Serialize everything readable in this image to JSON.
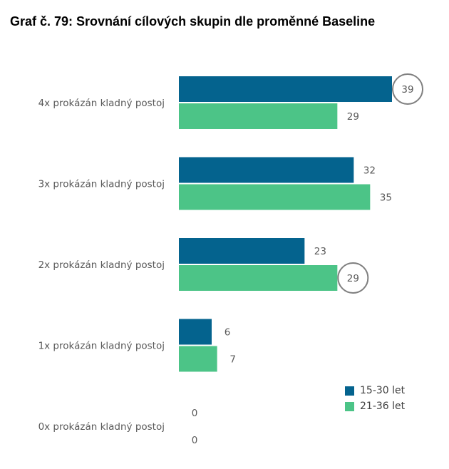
{
  "title": "Graf č. 79: Srovnání cílových skupin dle proměnné Baseline",
  "colors": {
    "series1": "#04638e",
    "series2": "#4cc487",
    "text": "#595959",
    "highlight": "#7f7f7f"
  },
  "chart_data": {
    "type": "bar",
    "orientation": "horizontal",
    "categories": [
      "4x prokázán kladný postoj",
      "3x prokázán kladný postoj",
      "2x prokázán kladný postoj",
      "1x prokázán kladný postoj",
      "0x prokázán kladný postoj"
    ],
    "series": [
      {
        "name": "15-30 let",
        "values": [
          39,
          32,
          23,
          6,
          0
        ]
      },
      {
        "name": "21-36 let",
        "values": [
          29,
          35,
          29,
          7,
          0
        ]
      }
    ],
    "highlighted": [
      {
        "series": 0,
        "category": 0
      },
      {
        "series": 1,
        "category": 2
      }
    ],
    "xlim": [
      0,
      39
    ],
    "grid": false,
    "legend_position": "bottom-right",
    "data_labels": true
  }
}
